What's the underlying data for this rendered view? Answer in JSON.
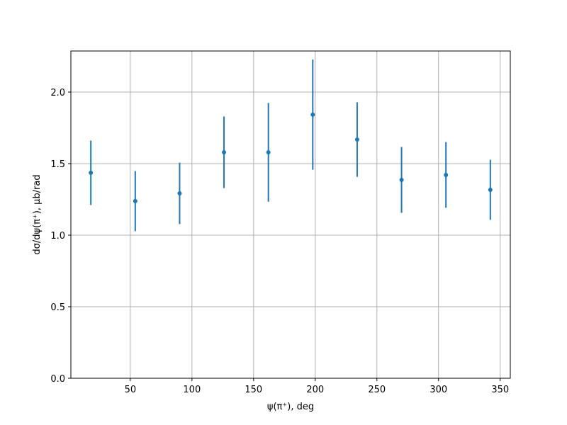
{
  "chart_data": {
    "type": "errorbar",
    "xlabel": "ψ(π⁺), deg",
    "ylabel": "dσ/dψ(π⁺), μb/rad",
    "x": [
      18,
      54,
      90,
      126,
      162,
      198,
      234,
      270,
      306,
      342
    ],
    "values": [
      1.436,
      1.238,
      1.292,
      1.579,
      1.579,
      1.842,
      1.668,
      1.386,
      1.421,
      1.317
    ],
    "errors": [
      0.225,
      0.21,
      0.215,
      0.25,
      0.345,
      0.385,
      0.26,
      0.23,
      0.23,
      0.21
    ],
    "color": "#1f77b4",
    "xlim": [
      1.8,
      358.2
    ],
    "ylim": [
      0,
      2.287
    ],
    "xticks": [
      50,
      100,
      150,
      200,
      250,
      300,
      350
    ],
    "yticks": [
      {
        "value": 0,
        "label": "0.0"
      },
      {
        "value": 0.5,
        "label": "0.5"
      },
      {
        "value": 1,
        "label": "1.0"
      },
      {
        "value": 1.5,
        "label": "1.5"
      },
      {
        "value": 2,
        "label": "2.0"
      }
    ],
    "grid": true
  }
}
